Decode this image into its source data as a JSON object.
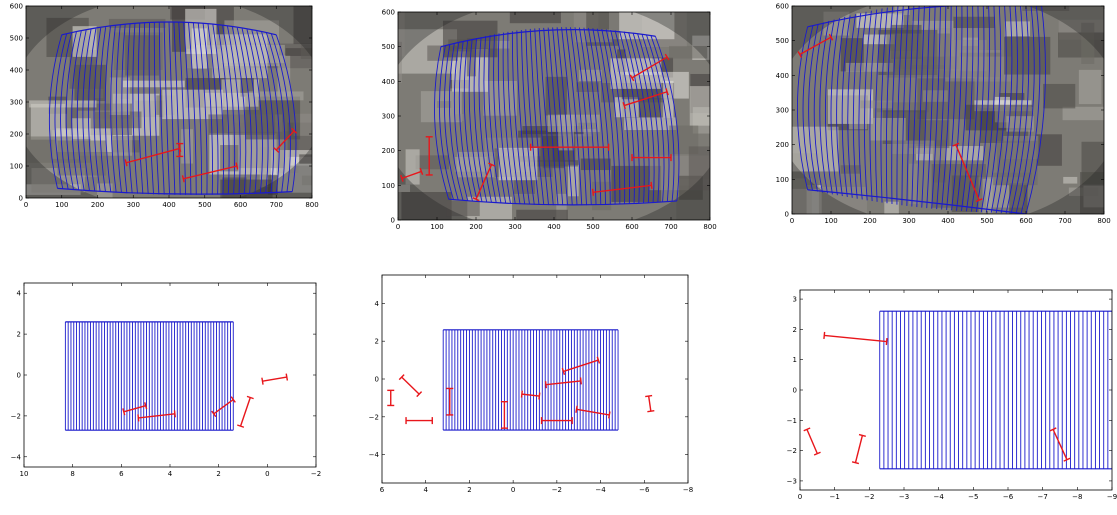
{
  "figure": {
    "panels": [
      {
        "id": "top-left",
        "type": "image-overlay",
        "xticks": [
          0,
          100,
          200,
          300,
          400,
          500,
          600,
          700,
          800
        ],
        "yticks": [
          0,
          100,
          200,
          300,
          400,
          500,
          600
        ],
        "xlim": [
          0,
          800
        ],
        "ylim": [
          600,
          0
        ],
        "grid_lines": 44,
        "grid_corners": {
          "top_left": [
            88,
            30
          ],
          "top_right": [
            745,
            20
          ],
          "bottom_right": [
            700,
            510
          ],
          "bottom_left": [
            100,
            510
          ]
        }
      },
      {
        "id": "top-mid",
        "type": "image-overlay",
        "xticks": [
          0,
          100,
          200,
          300,
          400,
          500,
          600,
          700,
          800
        ],
        "yticks": [
          0,
          100,
          200,
          300,
          400,
          500,
          600
        ],
        "xlim": [
          0,
          800
        ],
        "ylim": [
          600,
          0
        ],
        "grid_lines": 48,
        "grid_corners": {
          "top_left": [
            130,
            60
          ],
          "top_right": [
            715,
            55
          ],
          "bottom_right": [
            660,
            530
          ],
          "bottom_left": [
            110,
            500
          ]
        }
      },
      {
        "id": "top-right",
        "type": "image-overlay",
        "xticks": [
          0,
          100,
          200,
          300,
          400,
          500,
          600,
          700,
          800
        ],
        "yticks": [
          0,
          100,
          200,
          300,
          400,
          500,
          600
        ],
        "xlim": [
          0,
          800
        ],
        "ylim": [
          600,
          0
        ],
        "grid_lines": 44,
        "grid_corners": {
          "top_left": [
            40,
            70
          ],
          "top_right": [
            600,
            0
          ],
          "bottom_right": [
            640,
            600
          ],
          "bottom_left": [
            40,
            540
          ]
        }
      }
    ]
  },
  "chart_data": [
    {
      "type": "image-overlay",
      "id": "top-left",
      "xlim": [
        0,
        800
      ],
      "ylim": [
        600,
        0
      ],
      "xticks": [
        0,
        100,
        200,
        300,
        400,
        500,
        600,
        700,
        800
      ],
      "yticks": [
        0,
        100,
        200,
        300,
        400,
        500,
        600
      ],
      "segments": [
        {
          "x1": 280,
          "y1": 110,
          "x2": 430,
          "y2": 155
        },
        {
          "x1": 430,
          "y1": 130,
          "x2": 430,
          "y2": 170
        },
        {
          "x1": 440,
          "y1": 60,
          "x2": 590,
          "y2": 100
        },
        {
          "x1": 700,
          "y1": 150,
          "x2": 750,
          "y2": 210
        }
      ]
    },
    {
      "type": "image-overlay",
      "id": "top-mid",
      "xlim": [
        0,
        800
      ],
      "ylim": [
        600,
        0
      ],
      "xticks": [
        0,
        100,
        200,
        300,
        400,
        500,
        600,
        700,
        800
      ],
      "yticks": [
        0,
        100,
        200,
        300,
        400,
        500,
        600
      ],
      "segments": [
        {
          "x1": 10,
          "y1": 120,
          "x2": 60,
          "y2": 140
        },
        {
          "x1": 80,
          "y1": 130,
          "x2": 80,
          "y2": 240
        },
        {
          "x1": 200,
          "y1": 60,
          "x2": 240,
          "y2": 160
        },
        {
          "x1": 340,
          "y1": 210,
          "x2": 540,
          "y2": 210
        },
        {
          "x1": 500,
          "y1": 80,
          "x2": 650,
          "y2": 100
        },
        {
          "x1": 600,
          "y1": 180,
          "x2": 700,
          "y2": 180
        },
        {
          "x1": 580,
          "y1": 330,
          "x2": 690,
          "y2": 370
        },
        {
          "x1": 600,
          "y1": 410,
          "x2": 690,
          "y2": 470
        }
      ]
    },
    {
      "type": "image-overlay",
      "id": "top-right",
      "xlim": [
        0,
        800
      ],
      "ylim": [
        600,
        0
      ],
      "xticks": [
        0,
        100,
        200,
        300,
        400,
        500,
        600,
        700,
        800
      ],
      "yticks": [
        0,
        100,
        200,
        300,
        400,
        500,
        600
      ],
      "segments": [
        {
          "x1": 420,
          "y1": 200,
          "x2": 480,
          "y2": 40
        },
        {
          "x1": 20,
          "y1": 460,
          "x2": 100,
          "y2": 510
        }
      ]
    },
    {
      "type": "line",
      "id": "bottom-left",
      "xlim": [
        10,
        -2
      ],
      "ylim": [
        4.5,
        -4.5
      ],
      "xticks": [
        10,
        8,
        6,
        4,
        2,
        0,
        -2
      ],
      "yticks": [
        -4,
        -2,
        0,
        2,
        4
      ],
      "grid": {
        "x_min": 1.4,
        "x_max": 8.3,
        "y_min": -2.7,
        "y_max": 2.6,
        "n_lines": 60
      },
      "segments": [
        {
          "x1": 5.9,
          "y1": -1.8,
          "x2": 5.0,
          "y2": -1.5
        },
        {
          "x1": 5.3,
          "y1": -2.1,
          "x2": 3.8,
          "y2": -1.9
        },
        {
          "x1": 2.2,
          "y1": -1.9,
          "x2": 1.4,
          "y2": -1.2
        },
        {
          "x1": 1.1,
          "y1": -2.5,
          "x2": 0.7,
          "y2": -1.1
        },
        {
          "x1": 0.2,
          "y1": -0.3,
          "x2": -0.8,
          "y2": -0.1
        }
      ]
    },
    {
      "type": "line",
      "id": "bottom-mid",
      "xlim": [
        6,
        -8
      ],
      "ylim": [
        5.5,
        -5.5
      ],
      "xticks": [
        6,
        4,
        2,
        0,
        -2,
        -4,
        -6,
        -8
      ],
      "yticks": [
        -4,
        -2,
        0,
        2,
        4
      ],
      "grid": {
        "x_min": -4.8,
        "x_max": 3.2,
        "y_min": -2.7,
        "y_max": 2.6,
        "n_lines": 60
      },
      "segments": [
        {
          "x1": 5.6,
          "y1": -1.4,
          "x2": 5.6,
          "y2": -0.6
        },
        {
          "x1": 4.9,
          "y1": -2.2,
          "x2": 3.7,
          "y2": -2.2
        },
        {
          "x1": 5.1,
          "y1": 0.1,
          "x2": 4.3,
          "y2": -0.8
        },
        {
          "x1": 2.9,
          "y1": -1.9,
          "x2": 2.9,
          "y2": -0.5
        },
        {
          "x1": 0.4,
          "y1": -2.6,
          "x2": 0.4,
          "y2": -1.2
        },
        {
          "x1": -1.3,
          "y1": -2.2,
          "x2": -2.7,
          "y2": -2.2
        },
        {
          "x1": -0.4,
          "y1": -0.8,
          "x2": -1.2,
          "y2": -0.9
        },
        {
          "x1": -2.9,
          "y1": -1.6,
          "x2": -4.4,
          "y2": -1.9
        },
        {
          "x1": -1.5,
          "y1": -0.3,
          "x2": -3.1,
          "y2": -0.1
        },
        {
          "x1": -2.3,
          "y1": 0.4,
          "x2": -3.9,
          "y2": 1.0
        },
        {
          "x1": -6.3,
          "y1": -1.7,
          "x2": -6.2,
          "y2": -0.9
        }
      ]
    },
    {
      "type": "line",
      "id": "bottom-right",
      "xlim": [
        0,
        -9
      ],
      "ylim": [
        3.3,
        -3.3
      ],
      "xticks": [
        0,
        -1,
        -2,
        -3,
        -4,
        -5,
        -6,
        -7,
        -8,
        -9
      ],
      "yticks": [
        -3,
        -2,
        -1,
        0,
        1,
        2,
        3
      ],
      "grid": {
        "x_min": -9.0,
        "x_max": -2.3,
        "y_min": -2.6,
        "y_max": 2.6,
        "n_lines": 56
      },
      "segments": [
        {
          "x1": -0.2,
          "y1": -1.3,
          "x2": -0.5,
          "y2": -2.1
        },
        {
          "x1": -1.6,
          "y1": -2.4,
          "x2": -1.8,
          "y2": -1.5
        },
        {
          "x1": -0.7,
          "y1": 1.8,
          "x2": -2.5,
          "y2": 1.6
        },
        {
          "x1": -7.7,
          "y1": -2.3,
          "x2": -7.3,
          "y2": -1.3
        }
      ]
    }
  ]
}
